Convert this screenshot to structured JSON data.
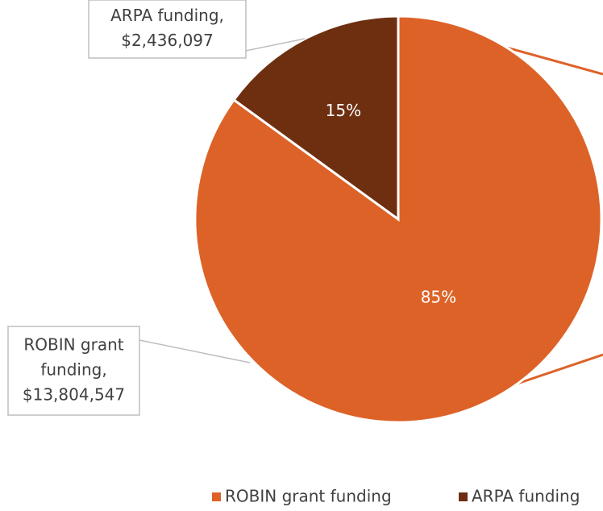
{
  "chart_data": {
    "type": "pie",
    "categories": [
      "ROBIN grant funding",
      "ARPA funding"
    ],
    "values": [
      13804547,
      2436097
    ],
    "percent_labels": [
      "85%",
      "15%"
    ],
    "data_labels": [
      [
        "ROBIN grant",
        "funding,",
        "$13,804,547"
      ],
      [
        "ARPA funding,",
        "$2,436,097"
      ]
    ],
    "colors": [
      "#dd6227",
      "#6e2f11"
    ],
    "legend": "bottom"
  }
}
